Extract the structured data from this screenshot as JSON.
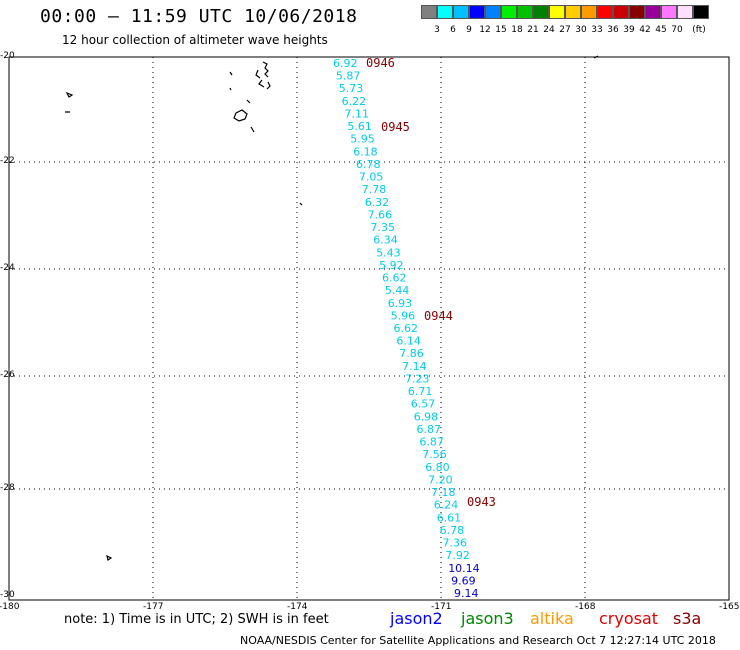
{
  "header": {
    "title": "00:00 – 11:59 UTC 10/06/2018",
    "subtitle": "12 hour collection of altimeter wave heights"
  },
  "legend": {
    "colors": [
      "#808080",
      "#00ffff",
      "#00bfff",
      "#0000ff",
      "#0080ff",
      "#00ee00",
      "#00c000",
      "#008000",
      "#ffff00",
      "#ffcc00",
      "#ff9900",
      "#ff0000",
      "#cc0000",
      "#880000",
      "#990099",
      "#ff77ff",
      "#ffe0ff",
      "#000000"
    ],
    "labels": [
      "3",
      "6",
      "9",
      "12",
      "15",
      "18",
      "21",
      "24",
      "27",
      "30",
      "33",
      "36",
      "39",
      "42",
      "45",
      "70",
      "(ft)"
    ]
  },
  "axes": {
    "x_ticks": [
      "-180",
      "-177",
      "-174",
      "-171",
      "-168",
      "-165"
    ],
    "y_ticks": [
      "-20",
      "-22",
      "-24",
      "-26",
      "-28",
      "-30"
    ]
  },
  "time_labels": [
    "0946",
    "0945",
    "0944",
    "0943"
  ],
  "swh_values": [
    "6.92",
    "5.87",
    "5.73",
    "6.22",
    "7.11",
    "5.61",
    "5.95",
    "6.18",
    "6.78",
    "7.05",
    "7.78",
    "6.32",
    "7.66",
    "7.35",
    "6.34",
    "5.43",
    "5.92",
    "6.62",
    "5.44",
    "6.93",
    "5.96",
    "6.62",
    "6.14",
    "7.86",
    "7.14",
    "7.23",
    "6.71",
    "6.57",
    "6.98",
    "6.87",
    "6.87",
    "7.56",
    "6.80",
    "7.20",
    "7.18",
    "6.24",
    "6.61",
    "6.78",
    "7.36",
    "7.92",
    "10.14",
    "9.69",
    "9.14"
  ],
  "footer": {
    "note": "note: 1) Time is in UTC; 2) SWH is in feet",
    "satellites": [
      "jason2",
      "jason3",
      "altika",
      "cryosat",
      "s3a"
    ],
    "credit": "NOAA/NESDIS Center for Satellite Applications and Research   Oct  7 12:27:14 UTC 2018"
  },
  "colors": {
    "cyan": "#00ccee",
    "blue": "#0000cc",
    "time_label": "#880000",
    "jason2": "#0000ff",
    "jason3": "#008800",
    "altika": "#ff9900",
    "cryosat": "#dd0000",
    "s3a": "#880000"
  }
}
